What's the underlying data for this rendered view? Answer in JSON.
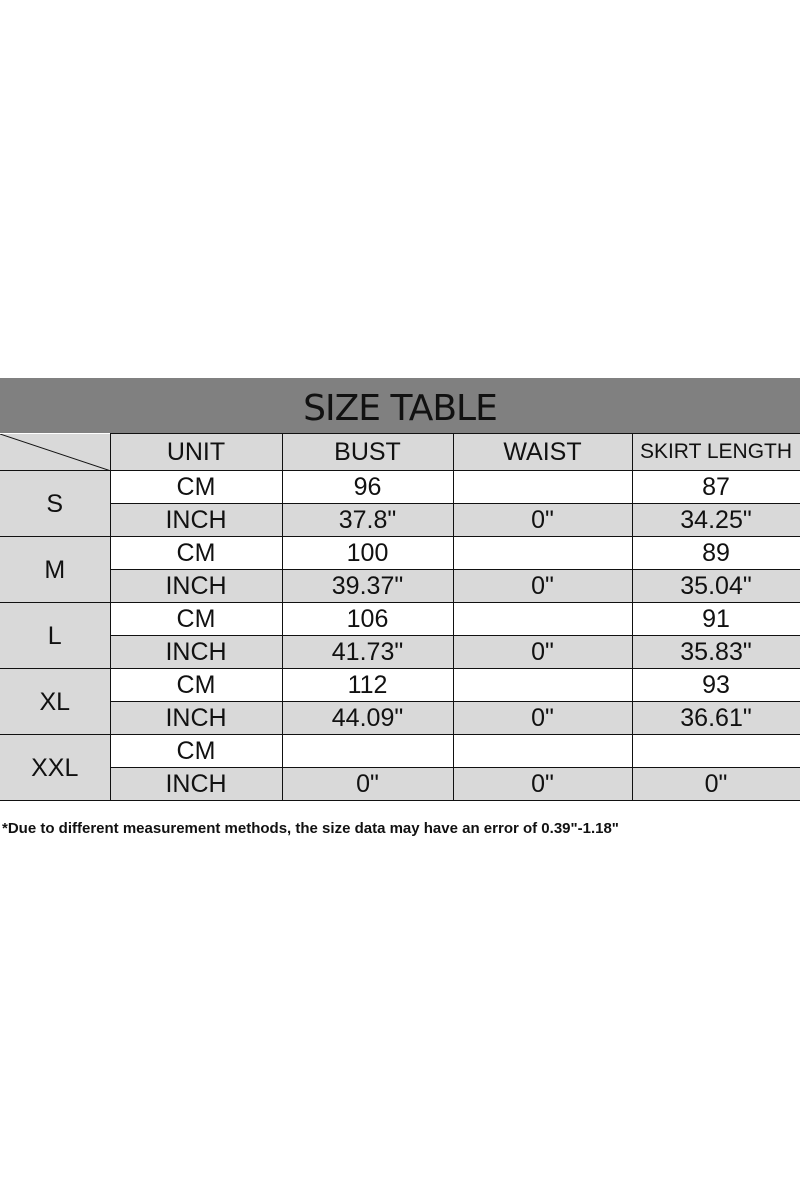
{
  "title": "SIZE TABLE",
  "headers": [
    "UNIT",
    "BUST",
    "WAIST",
    "SKIRT LENGTH"
  ],
  "rows": [
    {
      "size": "S",
      "cm": {
        "unit": "CM",
        "bust": "96",
        "waist": "",
        "skirt": "87"
      },
      "inch": {
        "unit": "INCH",
        "bust": "37.8\"",
        "waist": "0\"",
        "skirt": "34.25\""
      }
    },
    {
      "size": "M",
      "cm": {
        "unit": "CM",
        "bust": "100",
        "waist": "",
        "skirt": "89"
      },
      "inch": {
        "unit": "INCH",
        "bust": "39.37\"",
        "waist": "0\"",
        "skirt": "35.04\""
      }
    },
    {
      "size": "L",
      "cm": {
        "unit": "CM",
        "bust": "106",
        "waist": "",
        "skirt": "91"
      },
      "inch": {
        "unit": "INCH",
        "bust": "41.73\"",
        "waist": "0\"",
        "skirt": "35.83\""
      }
    },
    {
      "size": "XL",
      "cm": {
        "unit": "CM",
        "bust": "112",
        "waist": "",
        "skirt": "93"
      },
      "inch": {
        "unit": "INCH",
        "bust": "44.09\"",
        "waist": "0\"",
        "skirt": "36.61\""
      }
    },
    {
      "size": "XXL",
      "cm": {
        "unit": "CM",
        "bust": "",
        "waist": "",
        "skirt": ""
      },
      "inch": {
        "unit": "INCH",
        "bust": "0\"",
        "waist": "0\"",
        "skirt": "0\""
      }
    }
  ],
  "footnote": "*Due to different measurement methods, the size data may have an error of 0.39\"-1.18\"",
  "colors": {
    "title_bg": "#808080",
    "shaded_cell": "#d9d9d9"
  }
}
